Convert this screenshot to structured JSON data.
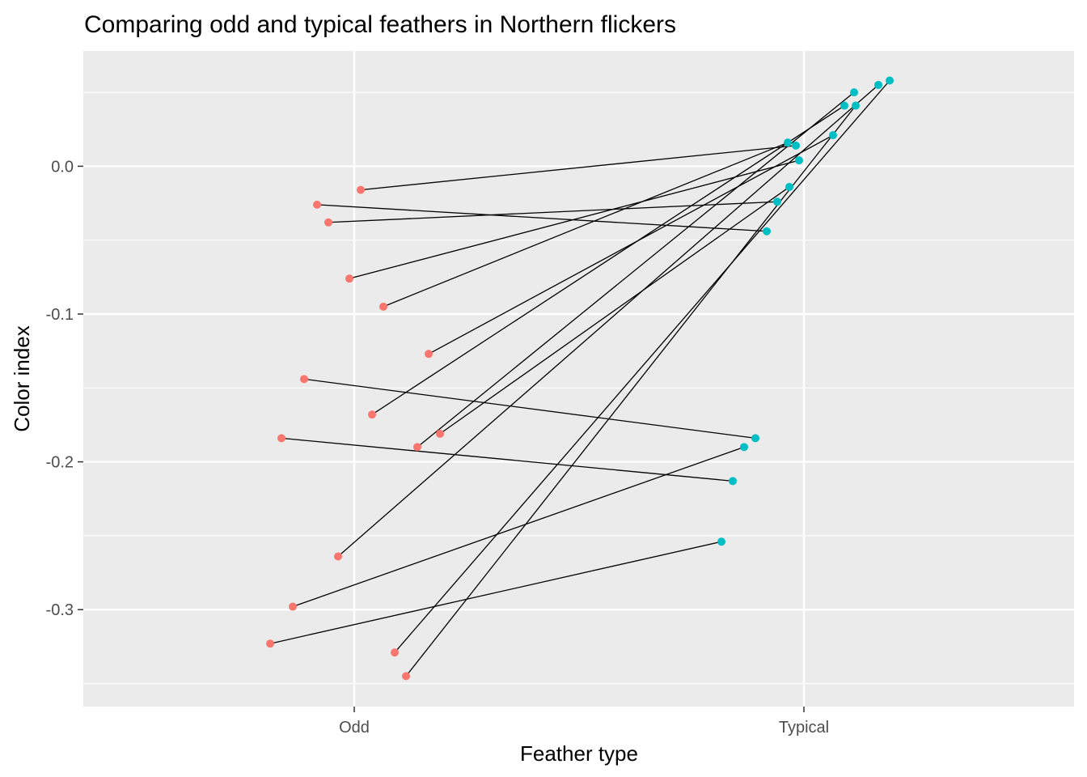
{
  "chart_data": {
    "type": "line",
    "title": "Comparing odd and typical feathers in Northern flickers",
    "xlabel": "Feather type",
    "ylabel": "Color index",
    "categories": [
      "Odd",
      "Typical"
    ],
    "ylim": [
      -0.365,
      0.06
    ],
    "yticks": [
      0.0,
      -0.1,
      -0.2,
      -0.3
    ],
    "ytick_labels": [
      "0.0",
      "-0.1",
      "-0.2",
      "-0.3"
    ],
    "grid": true,
    "legend": "none",
    "colors": {
      "panel": "#EBEBEB",
      "grid": "#FFFFFF",
      "odd": "#F8766D",
      "typical": "#00BFC4",
      "line": "#000000"
    },
    "pairs": [
      {
        "odd": -0.016,
        "typical": 0.014
      },
      {
        "odd": -0.026,
        "typical": -0.044
      },
      {
        "odd": -0.038,
        "typical": -0.024
      },
      {
        "odd": -0.076,
        "typical": 0.004
      },
      {
        "odd": -0.095,
        "typical": 0.016
      },
      {
        "odd": -0.127,
        "typical": 0.021
      },
      {
        "odd": -0.144,
        "typical": -0.184
      },
      {
        "odd": -0.168,
        "typical": 0.041
      },
      {
        "odd": -0.181,
        "typical": -0.014
      },
      {
        "odd": -0.184,
        "typical": -0.213
      },
      {
        "odd": -0.19,
        "typical": 0.05
      },
      {
        "odd": -0.264,
        "typical": 0.055
      },
      {
        "odd": -0.298,
        "typical": -0.19
      },
      {
        "odd": -0.323,
        "typical": -0.254
      },
      {
        "odd": -0.329,
        "typical": 0.058
      },
      {
        "odd": -0.345,
        "typical": 0.041
      }
    ]
  }
}
